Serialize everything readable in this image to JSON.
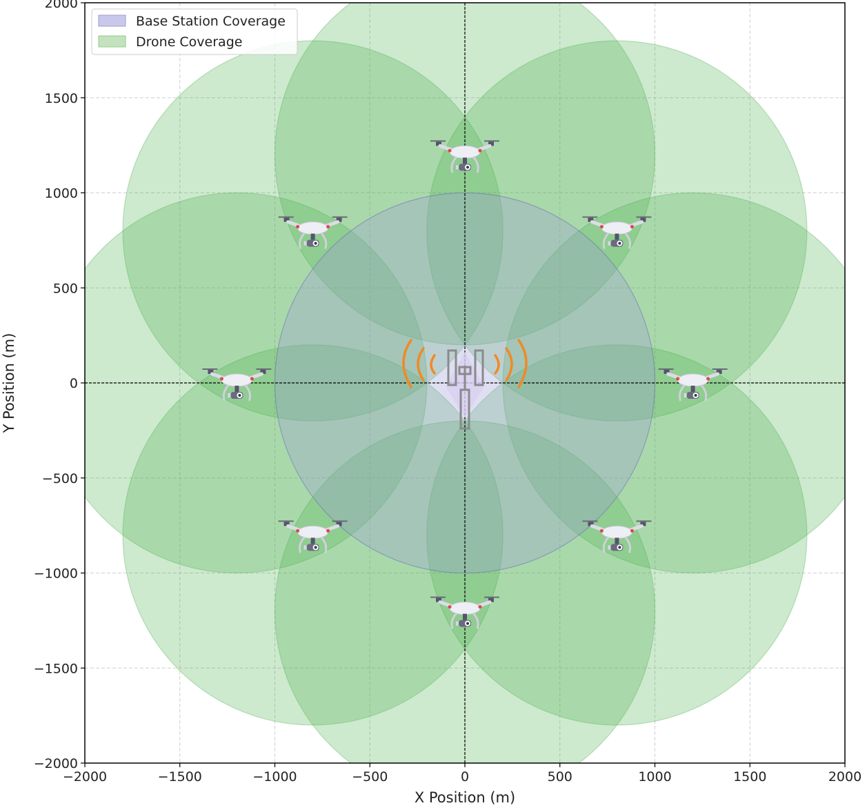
{
  "chart_data": {
    "type": "scatter",
    "xlabel": "X Position (m)",
    "ylabel": "Y Position (m)",
    "xlim": [
      -2000,
      2000
    ],
    "ylim": [
      -2000,
      2000
    ],
    "xticks": [
      -2000,
      -1500,
      -1000,
      -500,
      0,
      500,
      1000,
      1500,
      2000
    ],
    "yticks": [
      -2000,
      -1500,
      -1000,
      -500,
      0,
      500,
      1000,
      1500,
      2000
    ],
    "tick_labels_x": [
      "−2000",
      "−1500",
      "−1000",
      "−500",
      "0",
      "500",
      "1000",
      "1500",
      "2000"
    ],
    "tick_labels_y": [
      "−2000",
      "−1500",
      "−1000",
      "−500",
      "0",
      "500",
      "1000",
      "1500",
      "2000"
    ],
    "grid": true,
    "legend": {
      "placement": "top-left",
      "entries": [
        {
          "label": "Base Station Coverage",
          "color": "#b8b8e0"
        },
        {
          "label": "Drone Coverage",
          "color": "#a3d49a"
        }
      ]
    },
    "base_station": {
      "x": 0,
      "y": 0,
      "radius": 1000,
      "color": "#9b9bd8"
    },
    "drone_coverage_radius": 1000,
    "drone_color": "#4caf50",
    "drones": [
      {
        "x": 0,
        "y": 1200
      },
      {
        "x": 800,
        "y": 800
      },
      {
        "x": 1200,
        "y": 0
      },
      {
        "x": 800,
        "y": -800
      },
      {
        "x": 0,
        "y": -1200
      },
      {
        "x": -800,
        "y": -800
      },
      {
        "x": -1200,
        "y": 0
      },
      {
        "x": -800,
        "y": 800
      }
    ],
    "signal_color": "#f08a24",
    "tower_color": "#8a8a8a"
  }
}
